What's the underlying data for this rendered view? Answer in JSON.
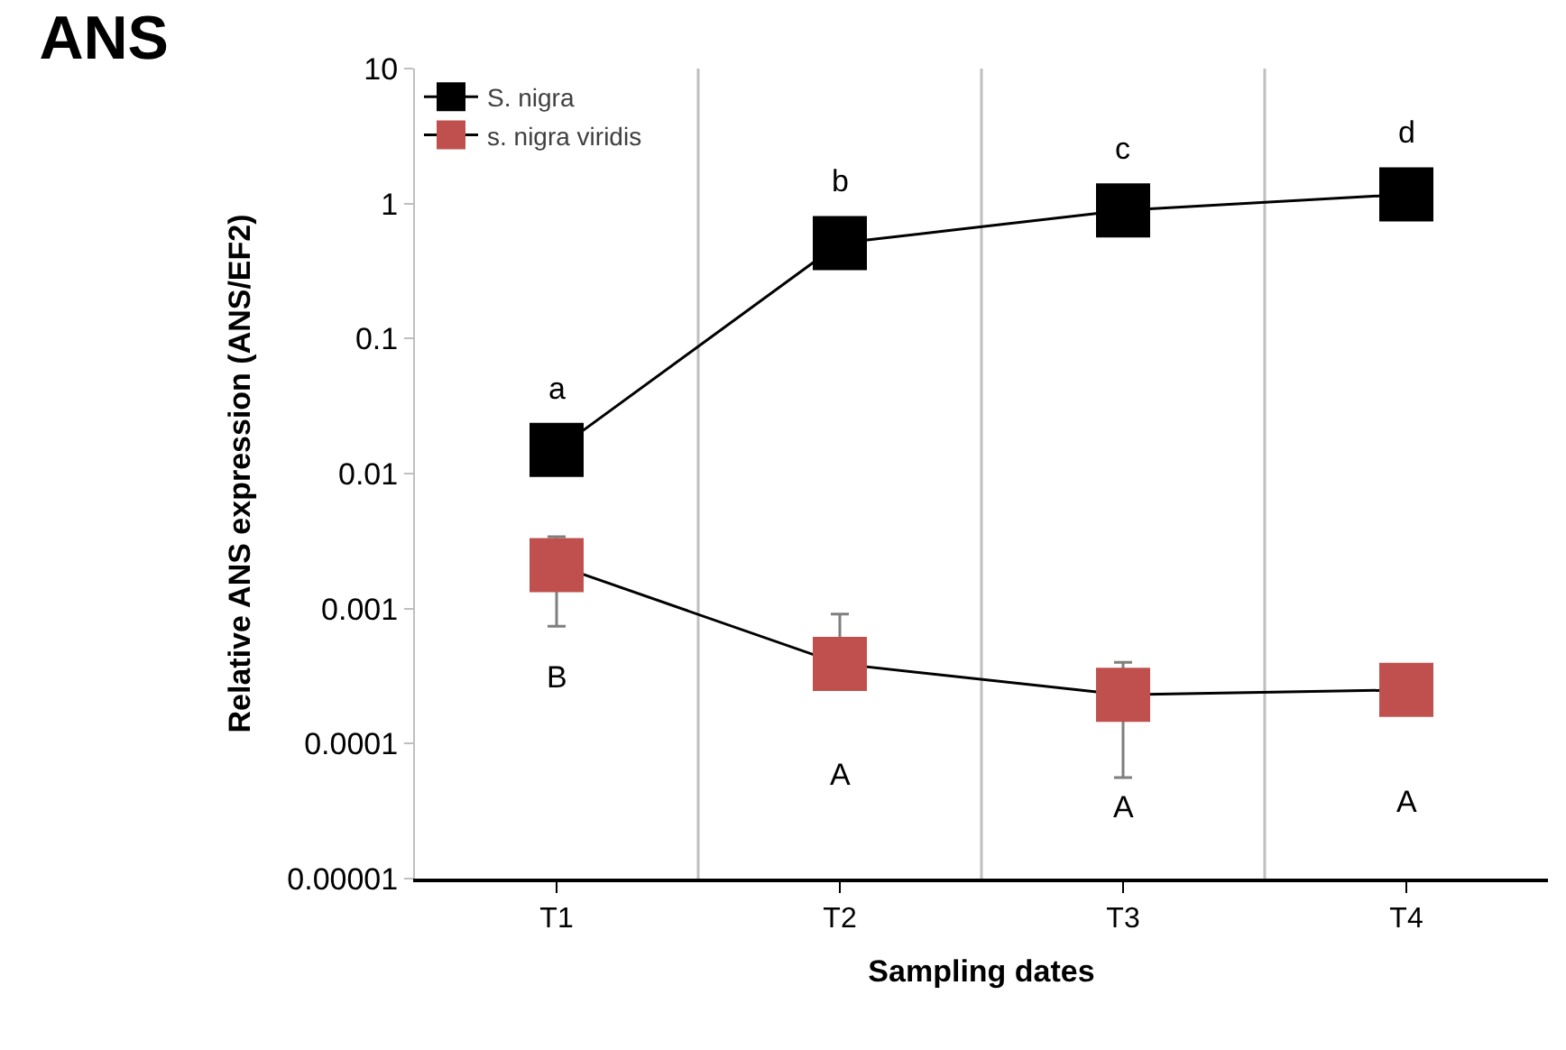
{
  "chart_data": {
    "type": "line",
    "title": "ANS",
    "xlabel": "Sampling dates",
    "ylabel": "Relative ANS expression (ANS/EF2)",
    "categories": [
      "T1",
      "T2",
      "T3",
      "T4"
    ],
    "series": [
      {
        "name": "S. nigra",
        "color": "#000000",
        "values": [
          0.015,
          0.51,
          0.89,
          1.17
        ]
      },
      {
        "name": "s. nigra viridis",
        "color": "#c0504d",
        "values": [
          0.0021,
          0.00039,
          0.00023,
          0.00025
        ],
        "errors": [
          [
            0.00074,
            0.0034
          ],
          [
            0.00039,
            0.00091
          ],
          [
            5.6e-05,
            0.0004
          ],
          null
        ]
      }
    ],
    "annotations": [
      "a",
      "b",
      "c",
      "d",
      "B",
      "A",
      "A",
      "A"
    ],
    "log": "y",
    "ylim": [
      1e-05,
      10
    ],
    "yticks": [
      10,
      1,
      0.1,
      0.01,
      0.001,
      0.0001,
      {
        "value": 1e-05,
        "label": "0.00001"
      }
    ],
    "grid": "x",
    "legend": "top left",
    "marker": "square",
    "line_style": "solid"
  }
}
